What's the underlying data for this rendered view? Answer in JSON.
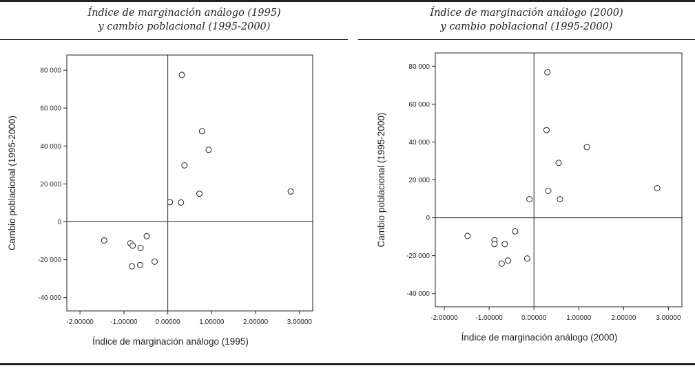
{
  "panels": [
    {
      "title_line1": "Índice de marginación análogo (1995)",
      "title_line2": "y cambio poblacional (1995-2000)",
      "chart_data": {
        "type": "scatter",
        "xlabel": "Índice de marginación análogo (1995)",
        "ylabel": "Cambio poblacional (1995-2000)",
        "xlim": [
          -2.3,
          3.3
        ],
        "ylim": [
          -47000,
          88000
        ],
        "x_ticks": [
          -2,
          -1,
          0,
          1,
          2,
          3
        ],
        "x_tick_labels": [
          "-2.00000",
          "-1.00000",
          "0.00000",
          "1.00000",
          "2.00000",
          "3.00000"
        ],
        "y_ticks": [
          -40000,
          -20000,
          0,
          20000,
          40000,
          60000,
          80000
        ],
        "y_tick_labels": [
          "-40 000",
          "-20 000",
          "0",
          "20 000",
          "40 000",
          "60 000",
          "80 000"
        ],
        "reference_lines": {
          "x": 0,
          "y": 0
        },
        "points": [
          {
            "x": 0.32,
            "y": 77500
          },
          {
            "x": 0.78,
            "y": 47800
          },
          {
            "x": 0.93,
            "y": 38000
          },
          {
            "x": 0.38,
            "y": 29800
          },
          {
            "x": 0.72,
            "y": 14800
          },
          {
            "x": 2.8,
            "y": 16000
          },
          {
            "x": 0.05,
            "y": 10400
          },
          {
            "x": 0.3,
            "y": 10200
          },
          {
            "x": -1.45,
            "y": -9800
          },
          {
            "x": -0.85,
            "y": -11300
          },
          {
            "x": -0.8,
            "y": -12600
          },
          {
            "x": -0.48,
            "y": -7600
          },
          {
            "x": -0.62,
            "y": -13800
          },
          {
            "x": -0.3,
            "y": -21000
          },
          {
            "x": -0.63,
            "y": -22800
          },
          {
            "x": -0.82,
            "y": -23500
          }
        ]
      }
    },
    {
      "title_line1": "Índice de marginación análogo (2000)",
      "title_line2": "y cambio poblacional (1995-2000)",
      "chart_data": {
        "type": "scatter",
        "xlabel": "Índice de marginación análogo (2000)",
        "ylabel": "Cambio poblacional (1995-2000)",
        "xlim": [
          -2.2,
          3.3
        ],
        "ylim": [
          -47000,
          87000
        ],
        "x_ticks": [
          -2,
          -1,
          0,
          1,
          2,
          3
        ],
        "x_tick_labels": [
          "-2.00000",
          "-1.00000",
          "0.00000",
          "1.00000",
          "2.00000",
          "3.00000"
        ],
        "y_ticks": [
          -40000,
          -20000,
          0,
          20000,
          40000,
          60000,
          80000
        ],
        "y_tick_labels": [
          "-40 000",
          "-20 000",
          "0",
          "20 000",
          "40 000",
          "60 000",
          "80 000"
        ],
        "reference_lines": {
          "x": 0,
          "y": 0
        },
        "points": [
          {
            "x": 0.3,
            "y": 76800
          },
          {
            "x": 0.28,
            "y": 46300
          },
          {
            "x": 1.18,
            "y": 37300
          },
          {
            "x": 0.55,
            "y": 29000
          },
          {
            "x": 0.32,
            "y": 14200
          },
          {
            "x": 2.75,
            "y": 15600
          },
          {
            "x": -0.1,
            "y": 9800
          },
          {
            "x": 0.58,
            "y": 9800
          },
          {
            "x": -1.48,
            "y": -9600
          },
          {
            "x": -0.88,
            "y": -11800
          },
          {
            "x": -0.88,
            "y": -13900
          },
          {
            "x": -0.42,
            "y": -7200
          },
          {
            "x": -0.65,
            "y": -13900
          },
          {
            "x": -0.15,
            "y": -21500
          },
          {
            "x": -0.58,
            "y": -22600
          },
          {
            "x": -0.72,
            "y": -24200
          }
        ]
      }
    }
  ]
}
